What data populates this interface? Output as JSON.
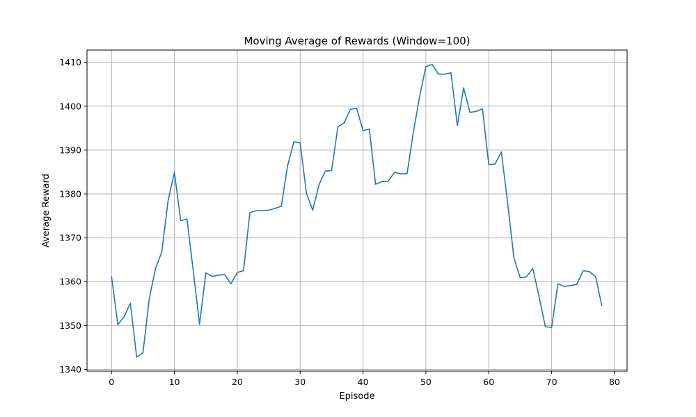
{
  "chart_data": {
    "type": "line",
    "title": "Moving Average of Rewards (Window=100)",
    "xlabel": "Episode",
    "ylabel": "Average Reward",
    "xlim": [
      -3.9,
      82
    ],
    "ylim": [
      1339.6,
      1412.8
    ],
    "xticks": [
      0,
      10,
      20,
      30,
      40,
      50,
      60,
      70,
      80
    ],
    "yticks": [
      1340,
      1350,
      1360,
      1370,
      1380,
      1390,
      1400,
      1410
    ],
    "grid": true,
    "series": [
      {
        "color": "#1f77b4",
        "x": [
          0,
          1,
          2,
          3,
          4,
          5,
          6,
          7,
          8,
          9,
          10,
          11,
          12,
          13,
          14,
          15,
          16,
          17,
          18,
          19,
          20,
          21,
          22,
          23,
          24,
          25,
          26,
          27,
          28,
          29,
          30,
          31,
          32,
          33,
          34,
          35,
          36,
          37,
          38,
          39,
          40,
          41,
          42,
          43,
          44,
          45,
          46,
          47,
          48,
          49,
          50,
          51,
          52,
          53,
          54,
          55,
          56,
          57,
          58,
          59,
          60,
          61,
          62,
          63,
          64,
          65,
          66,
          67,
          68,
          69,
          70,
          71,
          72,
          73,
          74,
          75,
          76,
          77,
          78
        ],
        "y": [
          1361.2,
          1350.2,
          1352.0,
          1355.1,
          1342.8,
          1343.8,
          1356.1,
          1363.0,
          1366.8,
          1378.5,
          1384.9,
          1373.9,
          1374.3,
          1362.5,
          1350.3,
          1362.0,
          1361.2,
          1361.5,
          1361.6,
          1359.5,
          1362.1,
          1362.5,
          1375.7,
          1376.2,
          1376.2,
          1376.3,
          1376.7,
          1377.2,
          1386.4,
          1391.9,
          1391.7,
          1380.1,
          1376.3,
          1382.1,
          1385.2,
          1385.3,
          1395.3,
          1396.2,
          1399.3,
          1399.5,
          1394.4,
          1394.8,
          1382.2,
          1382.8,
          1382.9,
          1384.9,
          1384.6,
          1384.6,
          1394.0,
          1402.2,
          1409.0,
          1409.5,
          1407.3,
          1407.3,
          1407.6,
          1395.6,
          1404.2,
          1398.6,
          1398.8,
          1399.4,
          1386.7,
          1386.8,
          1389.6,
          1378.0,
          1365.4,
          1360.9,
          1361.1,
          1363.0,
          1356.6,
          1349.7,
          1349.6,
          1359.5,
          1358.9,
          1359.1,
          1359.4,
          1362.5,
          1362.3,
          1361.1,
          1354.4
        ]
      }
    ]
  }
}
